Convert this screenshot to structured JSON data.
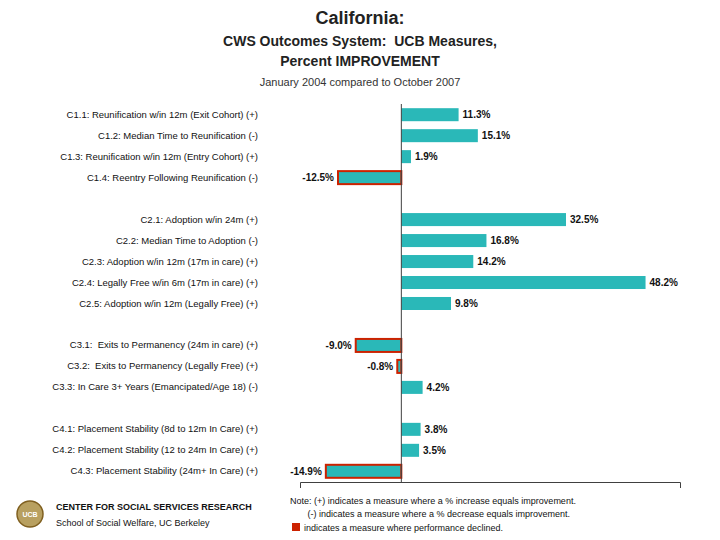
{
  "chart_data": {
    "type": "bar",
    "orientation": "horizontal",
    "title": [
      "California:",
      "CWS Outcomes System:  UCB Measures,",
      "Percent IMPROVEMENT"
    ],
    "subtitle": "January 2004 compared to October 2007",
    "categories": [
      "C1.1: Reunification w/in 12m (Exit Cohort) (+)",
      "C1.2: Median Time to Reunification (-)",
      "C1.3: Reunification w/in 12m (Entry Cohort) (+)",
      "C1.4: Reentry Following Reunification (-)",
      null,
      "C2.1: Adoption w/in 24m (+)",
      "C2.2: Median Time to Adoption (-)",
      "C2.3: Adoption w/in 12m (17m in care) (+)",
      "C2.4: Legally Free w/in 6m (17m in care) (+)",
      "C2.5: Adoption w/in 12m (Legally Free) (+)",
      null,
      "C3.1:  Exits to Permanency (24m in care) (+)",
      "C3.2:  Exits to Permanency (Legally Free) (+)",
      "C3.3: In Care 3+ Years (Emancipated/Age 18) (-)",
      null,
      "C4.1: Placement Stability (8d to 12m In Care) (+)",
      "C4.2: Placement Stability (12 to 24m In Care) (+)",
      "C4.3: Placement Stability (24m+ In Care) (+)"
    ],
    "values": [
      11.3,
      15.1,
      1.9,
      -12.5,
      null,
      32.5,
      16.8,
      14.2,
      48.2,
      9.8,
      null,
      -9.0,
      -0.8,
      4.2,
      null,
      3.8,
      3.5,
      -14.9
    ],
    "value_labels": [
      "11.3%",
      "15.1%",
      "1.9%",
      "-12.5%",
      null,
      "32.5%",
      "16.8%",
      "14.2%",
      "48.2%",
      "9.8%",
      null,
      "-9.0%",
      "-0.8%",
      "4.2%",
      null,
      "3.8%",
      "3.5%",
      "-14.9%"
    ],
    "declined": [
      false,
      false,
      false,
      true,
      null,
      false,
      false,
      false,
      false,
      false,
      null,
      true,
      true,
      false,
      null,
      false,
      false,
      true
    ],
    "color": "#2ab8b8",
    "xlim": [
      -20,
      55
    ],
    "grid": false,
    "data_labels": true,
    "tick_labels": "y",
    "annotations": [
      {
        "text": "UCB"
      },
      {
        "text": "CENTER FOR SOCIAL SERVICES RESEARCH"
      },
      {
        "text": "School of Social Welfare, UC Berkeley"
      },
      {
        "text": "Note: (+) indicates a measure where a % increase equals improvement."
      },
      {
        "text": "       (-) indicates a measure where a % decrease equals improvement."
      },
      {
        "text": "indicates a measure where performance declined.",
        "color": "#cc2200"
      }
    ]
  }
}
